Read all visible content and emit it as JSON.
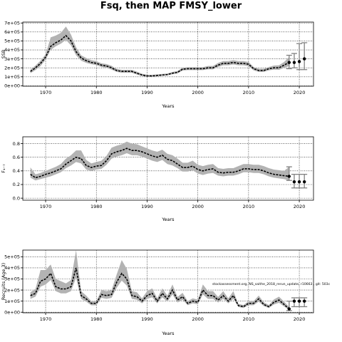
{
  "figure_title": "Fsq, then MAP FMSY_lower",
  "footnote": "stockassessment.org, NS_saithe_2018_rerun_update, r10663 , git: 503c",
  "colors": {
    "band": "#b3b3b3",
    "line": "#000000",
    "grid": "#000000",
    "proj": "#808080"
  },
  "chart_data": [
    {
      "type": "line",
      "title": "",
      "xlabel": "Years",
      "ylabel": "SSB",
      "xlim": [
        1965.5,
        2022.8
      ],
      "ylim": [
        -5000,
        710000
      ],
      "xticks": [
        1970,
        1980,
        1990,
        2000,
        2010,
        2020
      ],
      "yticks": [
        0,
        100000,
        200000,
        300000,
        400000,
        500000,
        600000,
        700000
      ],
      "ytick_labels": [
        "0e+00",
        "1e+05",
        "2e+05",
        "3e+05",
        "4e+05",
        "5e+05",
        "6e+05",
        "7e+05"
      ],
      "grid": true,
      "x": [
        1967,
        1968,
        1969,
        1970,
        1971,
        1972,
        1973,
        1974,
        1975,
        1976,
        1977,
        1978,
        1979,
        1980,
        1981,
        1982,
        1983,
        1984,
        1985,
        1986,
        1987,
        1988,
        1989,
        1990,
        1991,
        1992,
        1993,
        1994,
        1995,
        1996,
        1997,
        1998,
        1999,
        2000,
        2001,
        2002,
        2003,
        2004,
        2005,
        2006,
        2007,
        2008,
        2009,
        2010,
        2011,
        2012,
        2013,
        2014,
        2015,
        2016,
        2017,
        2018
      ],
      "estimate": [
        160000,
        200000,
        250000,
        320000,
        440000,
        480000,
        510000,
        560000,
        500000,
        380000,
        310000,
        280000,
        260000,
        250000,
        230000,
        220000,
        200000,
        170000,
        160000,
        160000,
        160000,
        140000,
        120000,
        110000,
        110000,
        115000,
        120000,
        125000,
        140000,
        150000,
        185000,
        190000,
        190000,
        190000,
        190000,
        200000,
        200000,
        230000,
        250000,
        250000,
        260000,
        250000,
        250000,
        240000,
        190000,
        170000,
        170000,
        190000,
        200000,
        200000,
        230000,
        260000
      ],
      "lower": [
        140000,
        175000,
        220000,
        290000,
        400000,
        440000,
        470000,
        510000,
        450000,
        340000,
        280000,
        255000,
        240000,
        230000,
        210000,
        200000,
        180000,
        155000,
        145000,
        145000,
        145000,
        125000,
        108000,
        100000,
        100000,
        105000,
        110000,
        115000,
        128000,
        138000,
        170000,
        175000,
        175000,
        175000,
        175000,
        183000,
        183000,
        210000,
        228000,
        228000,
        237000,
        228000,
        228000,
        218000,
        172000,
        155000,
        155000,
        172000,
        180000,
        178000,
        200000,
        220000
      ],
      "upper": [
        180000,
        225000,
        280000,
        350000,
        540000,
        560000,
        590000,
        660000,
        570000,
        430000,
        340000,
        310000,
        285000,
        275000,
        250000,
        242000,
        222000,
        188000,
        178000,
        178000,
        178000,
        157000,
        134000,
        122000,
        122000,
        127000,
        132000,
        137000,
        154000,
        165000,
        202000,
        207000,
        207000,
        207000,
        207000,
        220000,
        220000,
        255000,
        275000,
        275000,
        285000,
        275000,
        275000,
        265000,
        210000,
        190000,
        190000,
        210000,
        225000,
        228000,
        265000,
        320000
      ],
      "projection": [
        {
          "year": 2018,
          "value": 260000,
          "lower": 190000,
          "upper": 340000
        },
        {
          "year": 2019,
          "value": 260000,
          "lower": 200000,
          "upper": 360000
        },
        {
          "year": 2020,
          "value": 270000,
          "lower": 180000,
          "upper": 470000
        },
        {
          "year": 2021,
          "value": 300000,
          "lower": 180000,
          "upper": 480000
        }
      ]
    },
    {
      "type": "line",
      "title": "",
      "xlabel": "Years",
      "ylabel": "F₄₋₇",
      "xlim": [
        1965.5,
        2022.8
      ],
      "ylim": [
        -0.03,
        0.9
      ],
      "xticks": [
        1970,
        1980,
        1990,
        2000,
        2010,
        2020
      ],
      "yticks": [
        0.0,
        0.2,
        0.4,
        0.6,
        0.8
      ],
      "ytick_labels": [
        "0.0",
        "0.2",
        "0.4",
        "0.6",
        "0.8"
      ],
      "grid": true,
      "x": [
        1967,
        1968,
        1969,
        1970,
        1971,
        1972,
        1973,
        1974,
        1975,
        1976,
        1977,
        1978,
        1979,
        1980,
        1981,
        1982,
        1983,
        1984,
        1985,
        1986,
        1987,
        1988,
        1989,
        1990,
        1991,
        1992,
        1993,
        1994,
        1995,
        1996,
        1997,
        1998,
        1999,
        2000,
        2001,
        2002,
        2003,
        2004,
        2005,
        2006,
        2007,
        2008,
        2009,
        2010,
        2011,
        2012,
        2013,
        2014,
        2015,
        2016,
        2017,
        2018
      ],
      "estimate": [
        0.35,
        0.3,
        0.32,
        0.35,
        0.37,
        0.4,
        0.43,
        0.5,
        0.55,
        0.6,
        0.58,
        0.48,
        0.45,
        0.47,
        0.48,
        0.55,
        0.65,
        0.68,
        0.7,
        0.73,
        0.7,
        0.7,
        0.68,
        0.65,
        0.62,
        0.6,
        0.63,
        0.57,
        0.55,
        0.5,
        0.45,
        0.45,
        0.47,
        0.42,
        0.4,
        0.42,
        0.43,
        0.38,
        0.37,
        0.38,
        0.38,
        0.4,
        0.43,
        0.43,
        0.42,
        0.42,
        0.4,
        0.37,
        0.35,
        0.34,
        0.33,
        0.32
      ],
      "lower": [
        0.3,
        0.26,
        0.28,
        0.3,
        0.32,
        0.35,
        0.38,
        0.44,
        0.48,
        0.53,
        0.51,
        0.42,
        0.4,
        0.42,
        0.43,
        0.49,
        0.58,
        0.61,
        0.63,
        0.66,
        0.63,
        0.63,
        0.61,
        0.58,
        0.55,
        0.53,
        0.56,
        0.5,
        0.48,
        0.44,
        0.39,
        0.39,
        0.41,
        0.36,
        0.34,
        0.36,
        0.37,
        0.33,
        0.32,
        0.33,
        0.33,
        0.35,
        0.38,
        0.38,
        0.37,
        0.37,
        0.35,
        0.32,
        0.3,
        0.29,
        0.28,
        0.26
      ],
      "upper": [
        0.45,
        0.35,
        0.37,
        0.4,
        0.43,
        0.46,
        0.5,
        0.58,
        0.63,
        0.7,
        0.7,
        0.56,
        0.51,
        0.53,
        0.55,
        0.62,
        0.74,
        0.77,
        0.79,
        0.83,
        0.8,
        0.79,
        0.76,
        0.73,
        0.7,
        0.68,
        0.71,
        0.65,
        0.63,
        0.58,
        0.52,
        0.52,
        0.55,
        0.49,
        0.47,
        0.49,
        0.5,
        0.44,
        0.43,
        0.44,
        0.44,
        0.47,
        0.5,
        0.5,
        0.49,
        0.49,
        0.47,
        0.44,
        0.42,
        0.41,
        0.4,
        0.46
      ],
      "projection": [
        {
          "year": 2018,
          "value": 0.32,
          "lower": 0.26,
          "upper": 0.46
        },
        {
          "year": 2019,
          "value": 0.24,
          "lower": 0.15,
          "upper": 0.35
        },
        {
          "year": 2020,
          "value": 0.24,
          "lower": 0.15,
          "upper": 0.35
        },
        {
          "year": 2021,
          "value": 0.24,
          "lower": 0.15,
          "upper": 0.35
        }
      ]
    },
    {
      "type": "line",
      "title": "",
      "xlabel": "Years",
      "ylabel": "Recruits (Age 3)",
      "xlim": [
        1965.5,
        2022.8
      ],
      "ylim": [
        -5000,
        560000
      ],
      "xticks": [
        1970,
        1980,
        1990,
        2000,
        2010,
        2020
      ],
      "yticks": [
        0,
        100000,
        200000,
        300000,
        400000,
        500000
      ],
      "ytick_labels": [
        "0e+00",
        "1e+05",
        "2e+05",
        "3e+05",
        "4e+05",
        "5e+05"
      ],
      "grid": true,
      "x": [
        1967,
        1968,
        1969,
        1970,
        1971,
        1972,
        1973,
        1974,
        1975,
        1976,
        1977,
        1978,
        1979,
        1980,
        1981,
        1982,
        1983,
        1984,
        1985,
        1986,
        1987,
        1988,
        1989,
        1990,
        1991,
        1992,
        1993,
        1994,
        1995,
        1996,
        1997,
        1998,
        1999,
        2000,
        2001,
        2002,
        2003,
        2004,
        2005,
        2006,
        2007,
        2008,
        2009,
        2010,
        2011,
        2012,
        2013,
        2014,
        2015,
        2016,
        2017,
        2018
      ],
      "estimate": [
        150000,
        170000,
        280000,
        300000,
        350000,
        230000,
        210000,
        210000,
        230000,
        400000,
        150000,
        120000,
        80000,
        80000,
        160000,
        150000,
        160000,
        270000,
        350000,
        300000,
        150000,
        140000,
        100000,
        150000,
        170000,
        100000,
        170000,
        120000,
        200000,
        110000,
        140000,
        80000,
        100000,
        90000,
        200000,
        150000,
        150000,
        110000,
        150000,
        100000,
        150000,
        60000,
        50000,
        80000,
        80000,
        120000,
        70000,
        50000,
        90000,
        110000,
        70000,
        30000
      ],
      "lower": [
        120000,
        140000,
        230000,
        250000,
        290000,
        190000,
        170000,
        170000,
        190000,
        310000,
        120000,
        95000,
        62000,
        62000,
        130000,
        120000,
        130000,
        220000,
        285000,
        240000,
        120000,
        112000,
        80000,
        120000,
        135000,
        80000,
        135000,
        95000,
        160000,
        88000,
        112000,
        63000,
        80000,
        71000,
        160000,
        120000,
        120000,
        88000,
        120000,
        80000,
        120000,
        47000,
        38000,
        63000,
        63000,
        95000,
        55000,
        38000,
        70000,
        85000,
        52000,
        20000
      ],
      "upper": [
        180000,
        210000,
        380000,
        380000,
        430000,
        300000,
        280000,
        260000,
        290000,
        560000,
        190000,
        150000,
        100000,
        100000,
        200000,
        190000,
        200000,
        340000,
        470000,
        390000,
        190000,
        180000,
        125000,
        190000,
        215000,
        125000,
        215000,
        150000,
        250000,
        138000,
        175000,
        100000,
        125000,
        113000,
        250000,
        190000,
        190000,
        138000,
        190000,
        125000,
        190000,
        75000,
        65000,
        100000,
        100000,
        150000,
        90000,
        65000,
        115000,
        140000,
        95000,
        48000
      ],
      "projection": [
        {
          "year": 2018,
          "value": 30000,
          "lower": 15000,
          "upper": 100000
        },
        {
          "year": 2019,
          "value": 100000,
          "lower": 50000,
          "upper": 130000
        },
        {
          "year": 2020,
          "value": 100000,
          "lower": 50000,
          "upper": 130000
        },
        {
          "year": 2021,
          "value": 100000,
          "lower": 50000,
          "upper": 130000
        }
      ]
    }
  ]
}
